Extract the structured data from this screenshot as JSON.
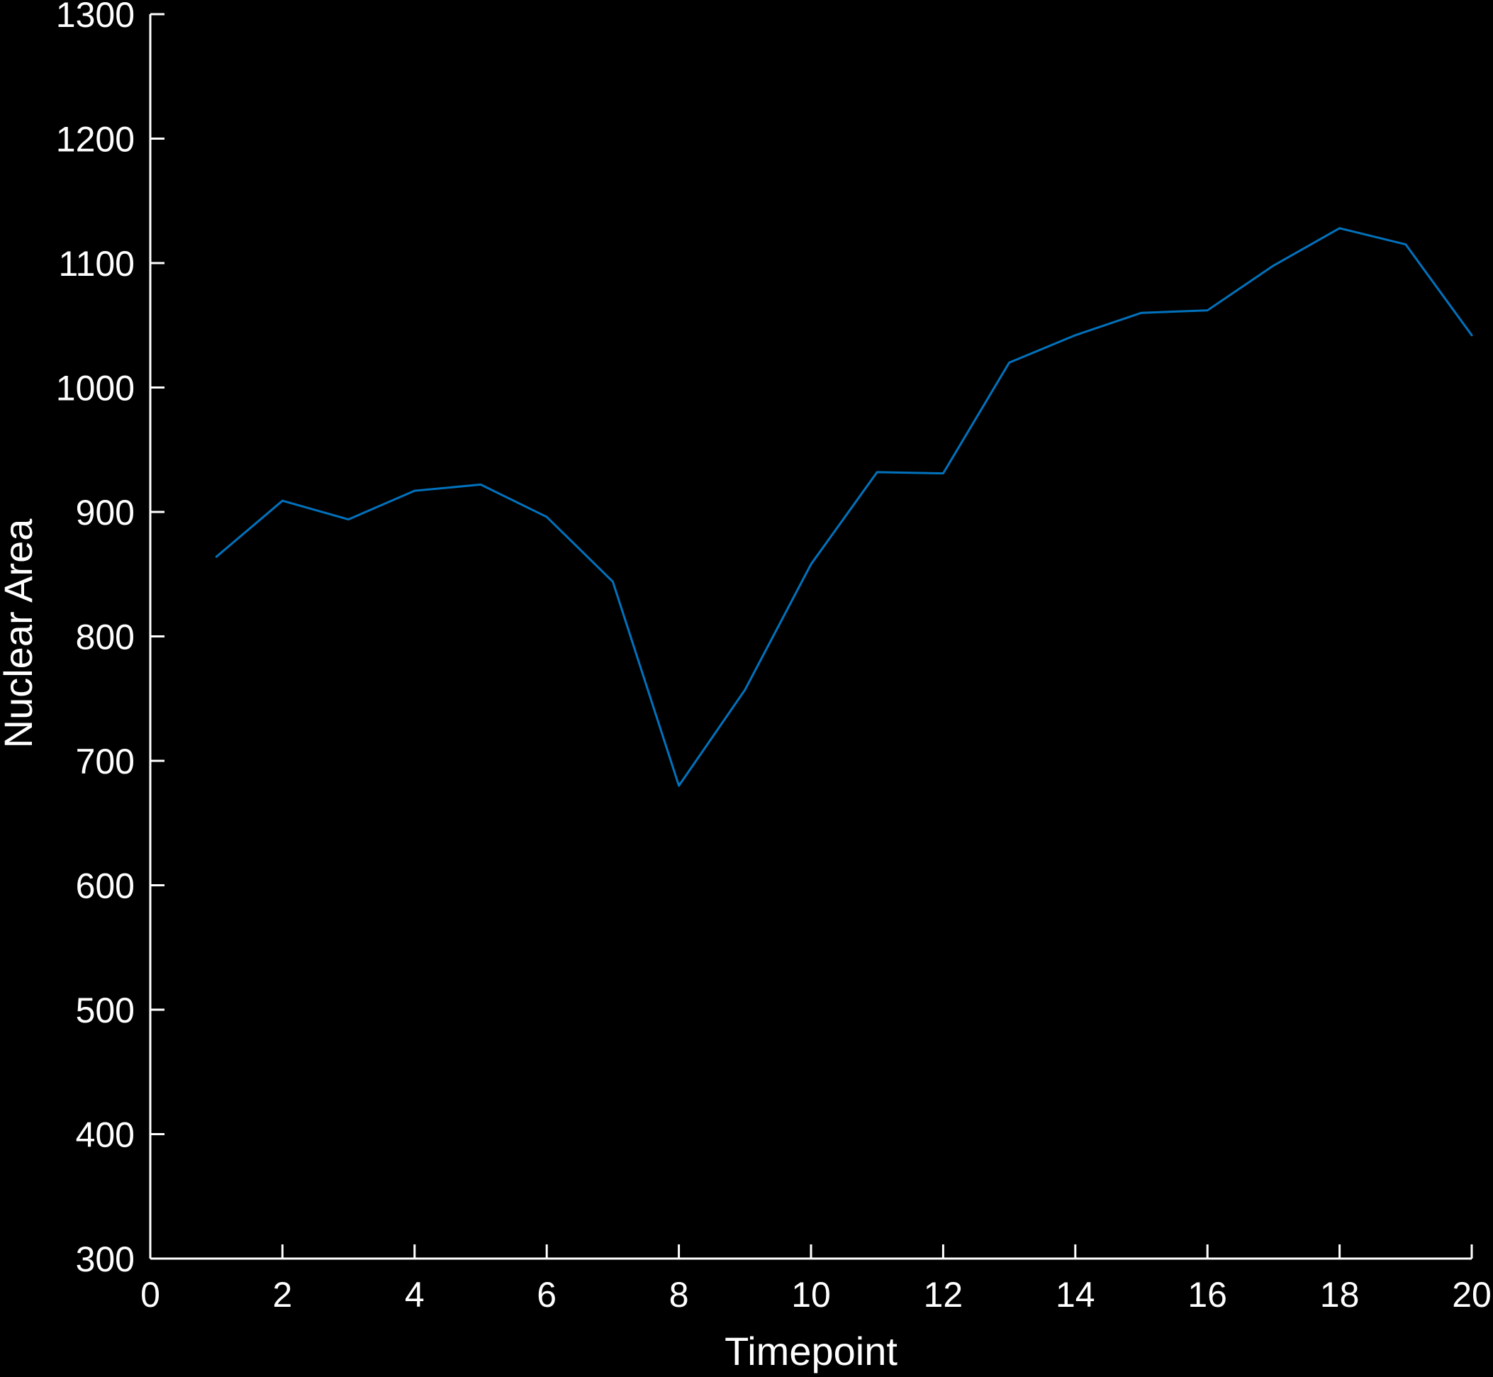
{
  "chart_data": {
    "type": "line",
    "title": "",
    "xlabel": "Timepoint",
    "ylabel": "Nuclear Area",
    "xlim": [
      0,
      20
    ],
    "ylim": [
      300,
      1300
    ],
    "xticks": [
      0,
      2,
      4,
      6,
      8,
      10,
      12,
      14,
      16,
      18,
      20
    ],
    "yticks": [
      300,
      400,
      500,
      600,
      700,
      800,
      900,
      1000,
      1100,
      1200,
      1300
    ],
    "grid": false,
    "legend": "none",
    "background": "#000000",
    "axis_color": "#ffffff",
    "series": [
      {
        "color": "#0072bd",
        "x": [
          1,
          2,
          3,
          4,
          5,
          6,
          7,
          8,
          9,
          10,
          11,
          12,
          13,
          14,
          15,
          16,
          17,
          18,
          19,
          20
        ],
        "y": [
          864,
          909,
          894,
          917,
          922,
          896,
          844,
          680,
          757,
          858,
          932,
          931,
          1020,
          1042,
          1060,
          1062,
          1098,
          1128,
          1115,
          1042
        ]
      }
    ]
  }
}
